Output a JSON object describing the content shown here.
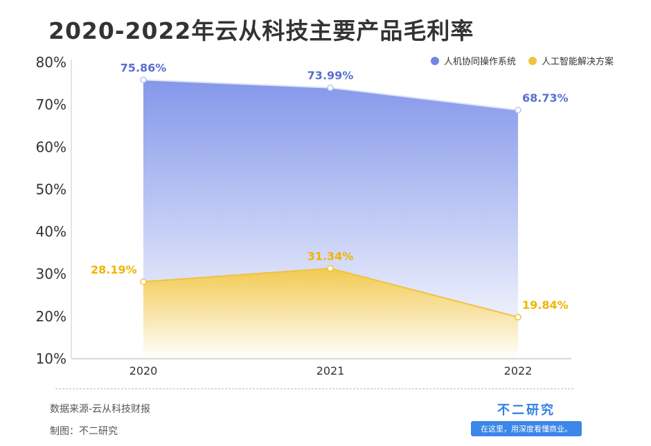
{
  "chart_data": {
    "type": "area",
    "title": "2020-2022年云从科技主要产品毛利率",
    "categories": [
      "2020",
      "2021",
      "2022"
    ],
    "ylim": [
      10,
      80
    ],
    "yticks": [
      "10%",
      "20%",
      "30%",
      "40%",
      "50%",
      "60%",
      "70%",
      "80%"
    ],
    "grid": false,
    "legend_position": "top-right",
    "series": [
      {
        "name": "人机协同操作系统",
        "values": [
          75.86,
          73.99,
          68.73
        ],
        "labels": [
          "75.86%",
          "73.99%",
          "68.73%"
        ],
        "color": "#6f87e0"
      },
      {
        "name": "人工智能解决方案",
        "values": [
          28.19,
          31.34,
          19.84
        ],
        "labels": [
          "28.19%",
          "31.34%",
          "19.84%"
        ],
        "color": "#f0c23e"
      }
    ]
  },
  "footer": {
    "source": "数据来源-云从科技财报",
    "credit": "制图：不二研究"
  },
  "brand": {
    "name": "不二研究",
    "tagline": "在这里，用深度看懂商业。"
  }
}
